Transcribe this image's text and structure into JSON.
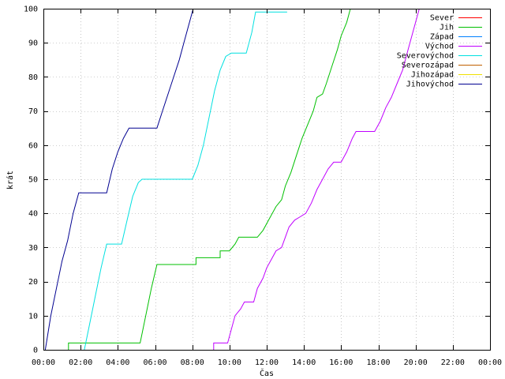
{
  "chart_data": {
    "type": "line",
    "xlabel": "Čas",
    "ylabel": "krát",
    "xlim": [
      0,
      24
    ],
    "ylim": [
      0,
      100
    ],
    "x_ticks": [
      0,
      2,
      4,
      6,
      8,
      10,
      12,
      14,
      16,
      18,
      20,
      22,
      24
    ],
    "x_tick_labels": [
      "00:00",
      "02:00",
      "04:00",
      "06:00",
      "08:00",
      "10:00",
      "12:00",
      "14:00",
      "16:00",
      "18:00",
      "20:00",
      "22:00",
      "00:00"
    ],
    "y_ticks": [
      0,
      10,
      20,
      30,
      40,
      50,
      60,
      70,
      80,
      90,
      100
    ],
    "grid": true,
    "legend_position": "top-right",
    "series": [
      {
        "name": "Sever",
        "color": "#ff0000",
        "points": []
      },
      {
        "name": "Jih",
        "color": "#00c000",
        "points": [
          [
            1.35,
            0
          ],
          [
            1.35,
            2
          ],
          [
            2.5,
            2
          ],
          [
            5.2,
            2
          ],
          [
            5.5,
            10
          ],
          [
            5.8,
            18
          ],
          [
            6.1,
            25
          ],
          [
            7.0,
            25
          ],
          [
            8.2,
            25
          ],
          [
            8.2,
            27
          ],
          [
            9.5,
            27
          ],
          [
            9.5,
            29
          ],
          [
            10.0,
            29
          ],
          [
            10.3,
            31
          ],
          [
            10.5,
            33
          ],
          [
            11.5,
            33
          ],
          [
            11.8,
            35
          ],
          [
            12.1,
            38
          ],
          [
            12.5,
            42
          ],
          [
            12.8,
            44
          ],
          [
            13.0,
            48
          ],
          [
            13.3,
            52
          ],
          [
            13.6,
            57
          ],
          [
            13.9,
            62
          ],
          [
            14.2,
            66
          ],
          [
            14.5,
            70
          ],
          [
            14.7,
            74
          ],
          [
            15.0,
            75
          ],
          [
            15.2,
            78
          ],
          [
            15.5,
            83
          ],
          [
            15.8,
            88
          ],
          [
            16.0,
            92
          ],
          [
            16.3,
            96
          ],
          [
            16.5,
            100
          ]
        ]
      },
      {
        "name": "Západ",
        "color": "#0080ff",
        "points": []
      },
      {
        "name": "Východ",
        "color": "#c000ff",
        "points": [
          [
            9.15,
            0
          ],
          [
            9.15,
            2
          ],
          [
            9.9,
            2
          ],
          [
            10.1,
            6
          ],
          [
            10.3,
            10
          ],
          [
            10.6,
            12
          ],
          [
            10.8,
            14
          ],
          [
            11.3,
            14
          ],
          [
            11.5,
            18
          ],
          [
            11.8,
            21
          ],
          [
            12.0,
            24
          ],
          [
            12.3,
            27
          ],
          [
            12.5,
            29
          ],
          [
            12.8,
            30
          ],
          [
            13.0,
            33
          ],
          [
            13.2,
            36
          ],
          [
            13.5,
            38
          ],
          [
            13.8,
            39
          ],
          [
            14.1,
            40
          ],
          [
            14.4,
            43
          ],
          [
            14.7,
            47
          ],
          [
            15.0,
            50
          ],
          [
            15.3,
            53
          ],
          [
            15.6,
            55
          ],
          [
            16.0,
            55
          ],
          [
            16.3,
            58
          ],
          [
            16.6,
            62
          ],
          [
            16.8,
            64
          ],
          [
            17.8,
            64
          ],
          [
            18.1,
            67
          ],
          [
            18.4,
            71
          ],
          [
            18.7,
            74
          ],
          [
            19.0,
            78
          ],
          [
            19.3,
            82
          ],
          [
            19.6,
            88
          ],
          [
            19.9,
            94
          ],
          [
            20.2,
            100
          ]
        ]
      },
      {
        "name": "Severovýchod",
        "color": "#00e0e0",
        "points": [
          [
            2.2,
            0
          ],
          [
            2.5,
            8
          ],
          [
            2.8,
            16
          ],
          [
            3.1,
            24
          ],
          [
            3.4,
            31
          ],
          [
            4.2,
            31
          ],
          [
            4.5,
            38
          ],
          [
            4.8,
            45
          ],
          [
            5.1,
            49
          ],
          [
            5.3,
            50
          ],
          [
            8.0,
            50
          ],
          [
            8.3,
            54
          ],
          [
            8.6,
            60
          ],
          [
            8.9,
            68
          ],
          [
            9.2,
            76
          ],
          [
            9.5,
            82
          ],
          [
            9.8,
            86
          ],
          [
            10.1,
            87
          ],
          [
            10.9,
            87
          ],
          [
            11.2,
            93
          ],
          [
            11.4,
            99
          ],
          [
            13.1,
            99
          ]
        ]
      },
      {
        "name": "Severozápad",
        "color": "#c06000",
        "points": []
      },
      {
        "name": "Jihozápad",
        "color": "#f0e000",
        "points": []
      },
      {
        "name": "Jihovýchod",
        "color": "#000090",
        "points": [
          [
            0.1,
            0
          ],
          [
            0.4,
            10
          ],
          [
            0.7,
            18
          ],
          [
            1.0,
            26
          ],
          [
            1.3,
            32
          ],
          [
            1.6,
            40
          ],
          [
            1.9,
            46
          ],
          [
            3.4,
            46
          ],
          [
            3.7,
            53
          ],
          [
            4.0,
            58
          ],
          [
            4.3,
            62
          ],
          [
            4.6,
            65
          ],
          [
            6.1,
            65
          ],
          [
            6.4,
            70
          ],
          [
            6.7,
            75
          ],
          [
            7.0,
            80
          ],
          [
            7.3,
            85
          ],
          [
            7.6,
            91
          ],
          [
            7.9,
            97
          ],
          [
            8.05,
            100
          ]
        ]
      }
    ]
  }
}
